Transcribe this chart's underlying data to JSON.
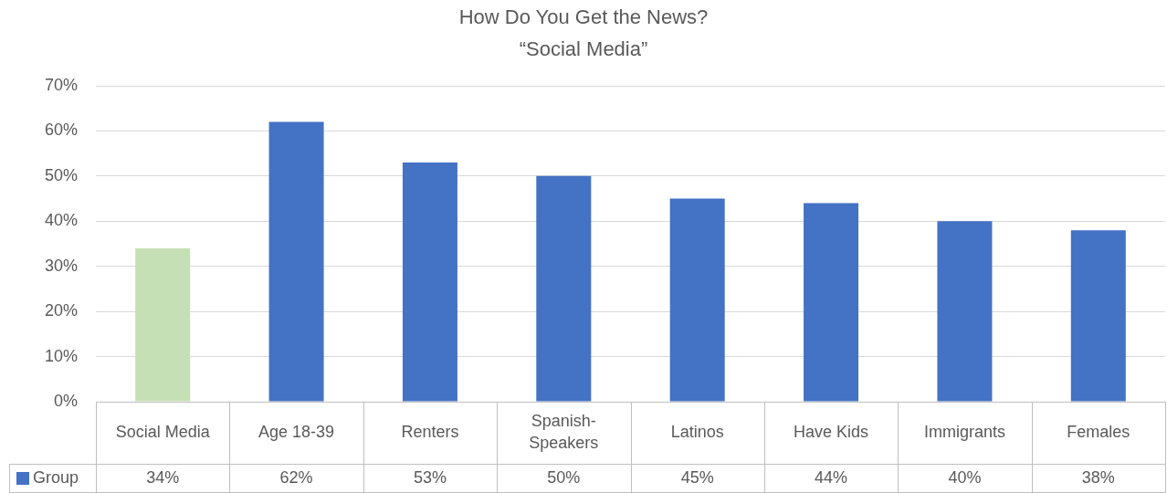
{
  "chart_data": {
    "type": "bar",
    "title": "How Do You Get the News?",
    "subtitle": "“Social Media”",
    "categories": [
      "Social Media",
      "Age 18-39",
      "Renters",
      "Spanish-Speakers",
      "Latinos",
      "Have Kids",
      "Immigrants",
      "Females"
    ],
    "series": [
      {
        "name": "Group",
        "color": "#4472c4",
        "colors": [
          "#c5e0b4",
          "#4472c4",
          "#4472c4",
          "#4472c4",
          "#4472c4",
          "#4472c4",
          "#4472c4",
          "#4472c4"
        ],
        "values": [
          34,
          62,
          53,
          50,
          45,
          44,
          40,
          38
        ],
        "value_labels": [
          "34%",
          "62%",
          "53%",
          "50%",
          "45%",
          "44%",
          "40%",
          "38%"
        ]
      }
    ],
    "ylim": [
      0,
      70
    ],
    "yticks": [
      {
        "value": 0,
        "label": "0%"
      },
      {
        "value": 10,
        "label": "10%"
      },
      {
        "value": 20,
        "label": "20%"
      },
      {
        "value": 30,
        "label": "30%"
      },
      {
        "value": 40,
        "label": "40%"
      },
      {
        "value": 50,
        "label": "50%"
      },
      {
        "value": 60,
        "label": "60%"
      },
      {
        "value": 70,
        "label": "70%"
      }
    ],
    "grid": "y",
    "legend": "bottom"
  }
}
